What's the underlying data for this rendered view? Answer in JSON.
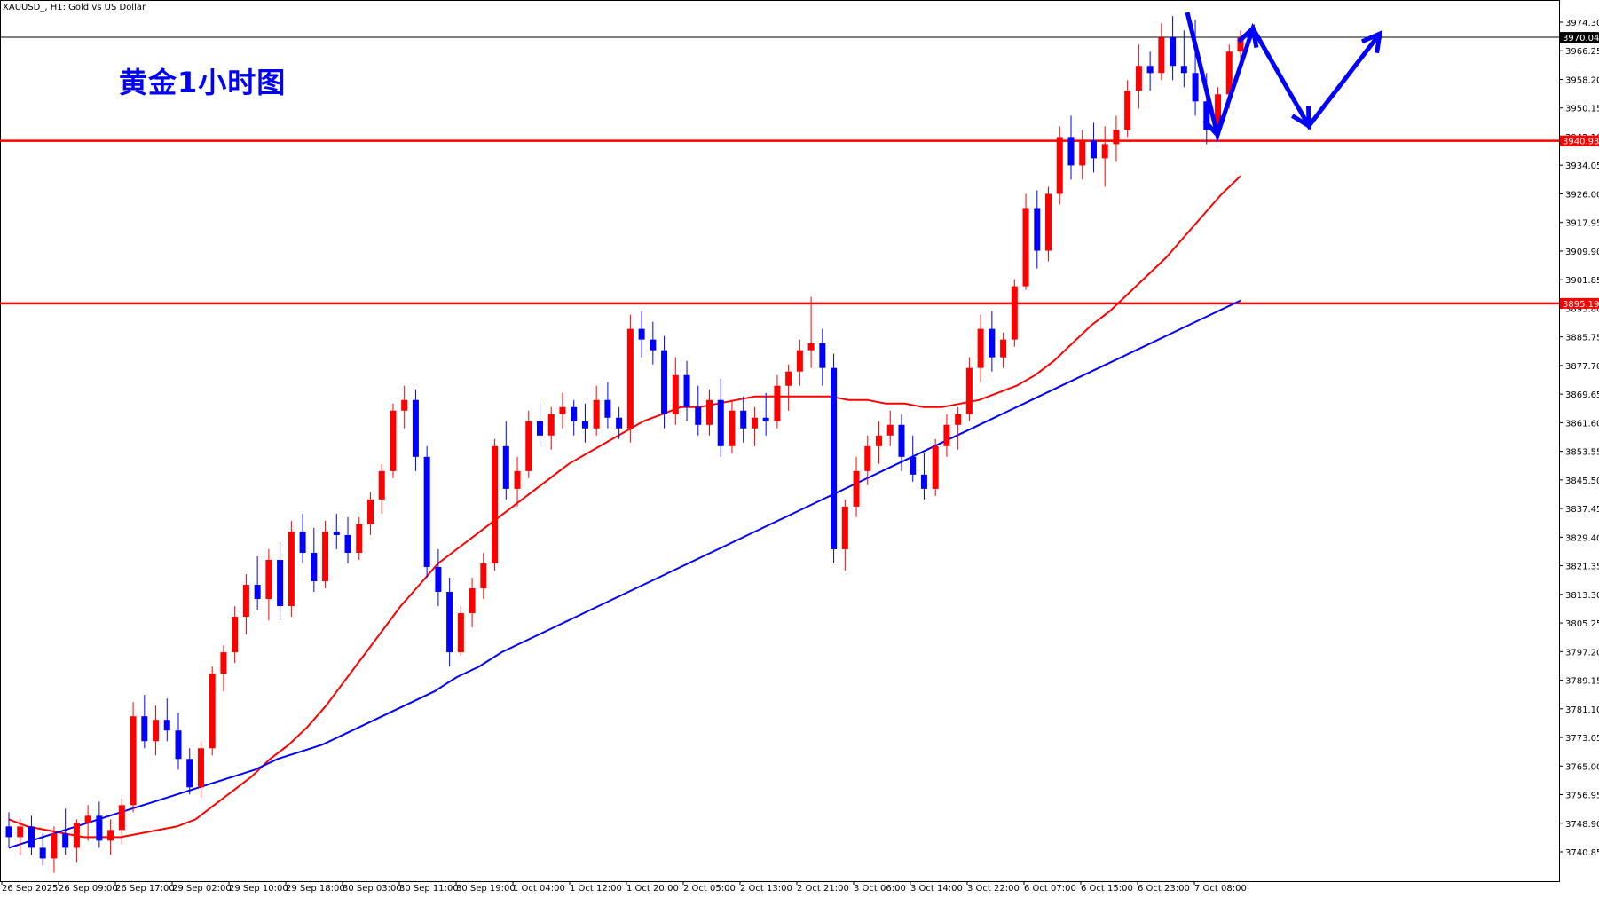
{
  "header": {
    "symbol_line": "XAUUSD_, H1:  Gold vs US Dollar"
  },
  "overlay_title": "黄金1小时图",
  "colors": {
    "bull": "#ff0000",
    "bear": "#0000ff",
    "ma_fast": "#ff0000",
    "ma_slow": "#0000ff",
    "level_line": "#ff0000",
    "current_line": "#000000",
    "arrow": "#0000ff",
    "grid_border": "#000000"
  },
  "chart_data": {
    "type": "candlestick",
    "title": "",
    "symbol": "XAUUSD_",
    "timeframe": "H1",
    "description": "Gold vs US Dollar",
    "ylim": [
      3733,
      3980
    ],
    "y_ticks": [
      "3974.30",
      "3966.25",
      "3958.20",
      "3950.15",
      "3942.10",
      "3934.05",
      "3926.00",
      "3917.95",
      "3909.90",
      "3901.85",
      "3893.80",
      "3885.75",
      "3877.70",
      "3869.65",
      "3861.60",
      "3853.55",
      "3845.50",
      "3837.45",
      "3829.40",
      "3821.35",
      "3813.30",
      "3805.25",
      "3797.20",
      "3789.15",
      "3781.10",
      "3773.05",
      "3765.00",
      "3756.95",
      "3748.90",
      "3740.85"
    ],
    "x_tick_labels": [
      "26 Sep 2025",
      "26 Sep 09:00",
      "26 Sep 17:00",
      "29 Sep 02:00",
      "29 Sep 10:00",
      "29 Sep 18:00",
      "30 Sep 03:00",
      "30 Sep 11:00",
      "30 Sep 19:00",
      "1 Oct 04:00",
      "1 Oct 12:00",
      "1 Oct 20:00",
      "2 Oct 05:00",
      "2 Oct 13:00",
      "2 Oct 21:00",
      "3 Oct 06:00",
      "3 Oct 14:00",
      "3 Oct 22:00",
      "6 Oct 07:00",
      "6 Oct 15:00",
      "6 Oct 23:00",
      "7 Oct 08:00"
    ],
    "current_price": {
      "label": "3970.04",
      "value": 3970.04
    },
    "levels": [
      {
        "label": "3940.93",
        "value": 3940.93
      },
      {
        "label": "3895.19",
        "value": 3895.19
      }
    ],
    "ohlc": [
      [
        3748,
        3752,
        3742,
        3745
      ],
      [
        3745,
        3750,
        3740,
        3748
      ],
      [
        3748,
        3751,
        3740,
        3742
      ],
      [
        3742,
        3746,
        3737,
        3739
      ],
      [
        3739,
        3748,
        3735,
        3746
      ],
      [
        3746,
        3753,
        3740,
        3742
      ],
      [
        3742,
        3750,
        3738,
        3749
      ],
      [
        3749,
        3754,
        3744,
        3751
      ],
      [
        3751,
        3755,
        3742,
        3744
      ],
      [
        3744,
        3750,
        3740,
        3747
      ],
      [
        3747,
        3756,
        3743,
        3754
      ],
      [
        3754,
        3783,
        3752,
        3779
      ],
      [
        3779,
        3785,
        3770,
        3772
      ],
      [
        3772,
        3782,
        3768,
        3778
      ],
      [
        3778,
        3784,
        3772,
        3775
      ],
      [
        3775,
        3780,
        3764,
        3767
      ],
      [
        3767,
        3770,
        3757,
        3759
      ],
      [
        3759,
        3772,
        3756,
        3770
      ],
      [
        3770,
        3793,
        3768,
        3791
      ],
      [
        3791,
        3799,
        3786,
        3797
      ],
      [
        3797,
        3810,
        3794,
        3807
      ],
      [
        3807,
        3819,
        3802,
        3816
      ],
      [
        3816,
        3824,
        3809,
        3812
      ],
      [
        3812,
        3826,
        3806,
        3823
      ],
      [
        3823,
        3828,
        3806,
        3810
      ],
      [
        3810,
        3834,
        3807,
        3831
      ],
      [
        3831,
        3836,
        3822,
        3825
      ],
      [
        3825,
        3832,
        3814,
        3817
      ],
      [
        3817,
        3834,
        3815,
        3831
      ],
      [
        3831,
        3836,
        3826,
        3830
      ],
      [
        3830,
        3835,
        3822,
        3825
      ],
      [
        3825,
        3835,
        3823,
        3833
      ],
      [
        3833,
        3842,
        3830,
        3840
      ],
      [
        3840,
        3850,
        3836,
        3848
      ],
      [
        3848,
        3867,
        3846,
        3865
      ],
      [
        3865,
        3872,
        3860,
        3868
      ],
      [
        3868,
        3871,
        3848,
        3852
      ],
      [
        3852,
        3855,
        3818,
        3821
      ],
      [
        3821,
        3826,
        3810,
        3814
      ],
      [
        3814,
        3818,
        3793,
        3797
      ],
      [
        3797,
        3810,
        3796,
        3808
      ],
      [
        3808,
        3818,
        3804,
        3815
      ],
      [
        3815,
        3825,
        3812,
        3822
      ],
      [
        3822,
        3857,
        3820,
        3855
      ],
      [
        3855,
        3862,
        3840,
        3843
      ],
      [
        3843,
        3852,
        3838,
        3848
      ],
      [
        3848,
        3865,
        3846,
        3862
      ],
      [
        3862,
        3867,
        3855,
        3858
      ],
      [
        3858,
        3866,
        3854,
        3864
      ],
      [
        3864,
        3870,
        3860,
        3866
      ],
      [
        3866,
        3868,
        3858,
        3862
      ],
      [
        3862,
        3867,
        3856,
        3860
      ],
      [
        3860,
        3872,
        3858,
        3868
      ],
      [
        3868,
        3873,
        3860,
        3863
      ],
      [
        3863,
        3866,
        3857,
        3860
      ],
      [
        3860,
        3892,
        3856,
        3888
      ],
      [
        3888,
        3893,
        3880,
        3885
      ],
      [
        3885,
        3890,
        3878,
        3882
      ],
      [
        3882,
        3886,
        3860,
        3864
      ],
      [
        3864,
        3880,
        3861,
        3875
      ],
      [
        3875,
        3879,
        3862,
        3866
      ],
      [
        3866,
        3872,
        3858,
        3861
      ],
      [
        3861,
        3871,
        3858,
        3868
      ],
      [
        3868,
        3874,
        3852,
        3855
      ],
      [
        3855,
        3868,
        3853,
        3865
      ],
      [
        3865,
        3869,
        3856,
        3860
      ],
      [
        3860,
        3866,
        3855,
        3863
      ],
      [
        3863,
        3870,
        3858,
        3862
      ],
      [
        3862,
        3875,
        3860,
        3872
      ],
      [
        3872,
        3878,
        3865,
        3876
      ],
      [
        3876,
        3885,
        3872,
        3882
      ],
      [
        3882,
        3897,
        3877,
        3884
      ],
      [
        3884,
        3888,
        3872,
        3877
      ],
      [
        3877,
        3881,
        3822,
        3826
      ],
      [
        3826,
        3840,
        3820,
        3838
      ],
      [
        3838,
        3852,
        3835,
        3848
      ],
      [
        3848,
        3858,
        3844,
        3855
      ],
      [
        3855,
        3862,
        3850,
        3858
      ],
      [
        3858,
        3865,
        3855,
        3861
      ],
      [
        3861,
        3864,
        3848,
        3852
      ],
      [
        3852,
        3858,
        3845,
        3847
      ],
      [
        3847,
        3853,
        3840,
        3843
      ],
      [
        3843,
        3857,
        3841,
        3855
      ],
      [
        3855,
        3864,
        3852,
        3861
      ],
      [
        3861,
        3866,
        3854,
        3864
      ],
      [
        3864,
        3880,
        3862,
        3877
      ],
      [
        3877,
        3892,
        3873,
        3888
      ],
      [
        3888,
        3893,
        3876,
        3880
      ],
      [
        3880,
        3887,
        3877,
        3885
      ],
      [
        3885,
        3902,
        3883,
        3900
      ],
      [
        3900,
        3926,
        3899,
        3922
      ],
      [
        3922,
        3927,
        3905,
        3910
      ],
      [
        3910,
        3928,
        3907,
        3926
      ],
      [
        3926,
        3945,
        3923,
        3942
      ],
      [
        3942,
        3948,
        3930,
        3934
      ],
      [
        3934,
        3944,
        3930,
        3941
      ],
      [
        3941,
        3946,
        3932,
        3936
      ],
      [
        3936,
        3945,
        3928,
        3940
      ],
      [
        3940,
        3948,
        3935,
        3944
      ],
      [
        3944,
        3958,
        3942,
        3955
      ],
      [
        3955,
        3968,
        3950,
        3962
      ],
      [
        3962,
        3966,
        3955,
        3960
      ],
      [
        3960,
        3974,
        3958,
        3970
      ],
      [
        3970,
        3976,
        3958,
        3962
      ],
      [
        3962,
        3972,
        3956,
        3960
      ],
      [
        3960,
        3975,
        3948,
        3952
      ],
      [
        3952,
        3960,
        3940,
        3944
      ],
      [
        3944,
        3956,
        3942,
        3954
      ],
      [
        3954,
        3968,
        3950,
        3966
      ],
      [
        3966,
        3972,
        3962,
        3970
      ]
    ],
    "ma_fast": [
      3750,
      3748,
      3747,
      3746,
      3745,
      3745,
      3745,
      3746,
      3747,
      3748,
      3750,
      3754,
      3758,
      3762,
      3767,
      3771,
      3776,
      3782,
      3789,
      3796,
      3803,
      3810,
      3816,
      3822,
      3826,
      3830,
      3834,
      3838,
      3842,
      3846,
      3850,
      3853,
      3856,
      3859,
      3862,
      3864,
      3866,
      3866,
      3867,
      3868,
      3869,
      3869,
      3869,
      3869,
      3869,
      3868,
      3868,
      3867,
      3867,
      3866,
      3866,
      3867,
      3868,
      3870,
      3872,
      3875,
      3879,
      3884,
      3889,
      3893,
      3898,
      3903,
      3908,
      3914,
      3920,
      3926,
      3931
    ],
    "ma_slow": [
      3742,
      3744,
      3746,
      3748,
      3750,
      3752,
      3754,
      3756,
      3758,
      3760,
      3762,
      3764,
      3767,
      3769,
      3771,
      3774,
      3777,
      3780,
      3783,
      3786,
      3790,
      3793,
      3797,
      3800,
      3803,
      3806,
      3809,
      3812,
      3815,
      3818,
      3821,
      3824,
      3827,
      3830,
      3833,
      3836,
      3839,
      3842,
      3845,
      3848,
      3851,
      3854,
      3857,
      3860,
      3863,
      3866,
      3869,
      3872,
      3875,
      3878,
      3881,
      3884,
      3887,
      3890,
      3893,
      3896
    ]
  }
}
